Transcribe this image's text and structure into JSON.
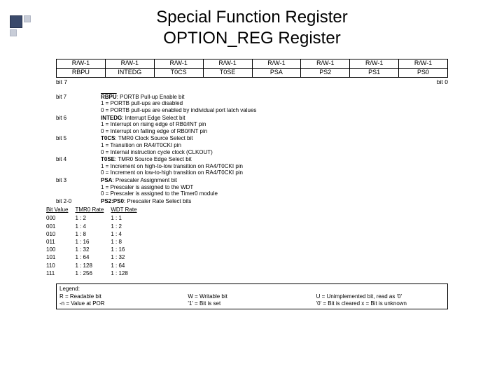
{
  "title_line1": "Special Function Register",
  "title_line2": "OPTION_REG Register",
  "bit_table": {
    "rw": [
      "R/W-1",
      "R/W-1",
      "R/W-1",
      "R/W-1",
      "R/W-1",
      "R/W-1",
      "R/W-1",
      "R/W-1"
    ],
    "names": [
      "RBPU",
      "INTEDG",
      "T0CS",
      "T0SE",
      "PSA",
      "PS2",
      "PS1",
      "PS0"
    ]
  },
  "bit_markers": {
    "left": "bit 7",
    "right": "bit 0"
  },
  "descriptions": [
    {
      "bit": "bit 7",
      "head_pre": "RBPU",
      "head_post": ": PORTB Pull-up Enable bit",
      "lines": [
        "1 = PORTB pull-ups are disabled",
        "0 = PORTB pull-ups are enabled by individual port latch values"
      ],
      "overline_head": true
    },
    {
      "bit": "bit 6",
      "head_pre": "INTEDG",
      "head_post": ": Interrupt Edge Select bit",
      "lines": [
        "1 = Interrupt on rising edge of RB0/INT pin",
        "0 = Interrupt on falling edge of RB0/INT pin"
      ]
    },
    {
      "bit": "bit 5",
      "head_pre": "T0CS",
      "head_post": ": TMR0 Clock Source Select bit",
      "lines": [
        "1 = Transition on RA4/T0CKI pin",
        "0 = Internal instruction cycle clock (CLKOUT)"
      ]
    },
    {
      "bit": "bit 4",
      "head_pre": "T0SE",
      "head_post": ": TMR0 Source Edge Select bit",
      "lines": [
        "1 = Increment on high-to-low transition on RA4/T0CKI pin",
        "0 = Increment on low-to-high transition on RA4/T0CKI pin"
      ]
    },
    {
      "bit": "bit 3",
      "head_pre": "PSA",
      "head_post": ": Prescaler Assignment bit",
      "lines": [
        "1 = Prescaler is assigned to the WDT",
        "0 = Prescaler is assigned to the Timer0 module"
      ]
    },
    {
      "bit": "bit 2-0",
      "head_pre": "PS2:PS0",
      "head_post": ": Prescaler Rate Select bits",
      "lines": []
    }
  ],
  "ps_table": {
    "headers": [
      "Bit Value",
      "TMR0 Rate",
      "WDT Rate"
    ],
    "rows": [
      [
        "000",
        "1 : 2",
        "1 : 1"
      ],
      [
        "001",
        "1 : 4",
        "1 : 2"
      ],
      [
        "010",
        "1 : 8",
        "1 : 4"
      ],
      [
        "011",
        "1 : 16",
        "1 : 8"
      ],
      [
        "100",
        "1 : 32",
        "1 : 16"
      ],
      [
        "101",
        "1 : 64",
        "1 : 32"
      ],
      [
        "110",
        "1 : 128",
        "1 : 64"
      ],
      [
        "111",
        "1 : 256",
        "1 : 128"
      ]
    ]
  },
  "legend": {
    "title": "Legend:",
    "row1": [
      "R = Readable bit",
      "W = Writable bit",
      "U = Unimplemented bit, read as '0'"
    ],
    "row2": [
      "-n = Value at POR",
      "'1' = Bit is set",
      "'0' = Bit is cleared      x = Bit is unknown"
    ]
  }
}
